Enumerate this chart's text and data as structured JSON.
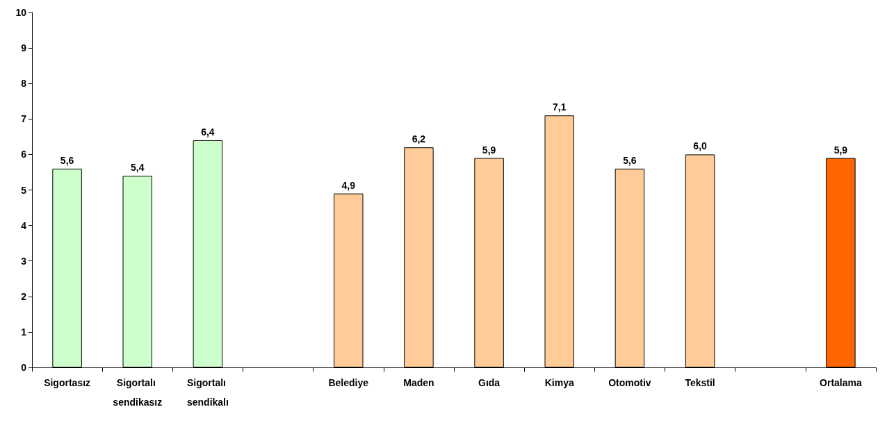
{
  "chart_data": {
    "type": "bar",
    "categories": [
      "Sigortasız",
      "Sigortalı sendikasız",
      "Sigortalı sendikalı",
      null,
      "Belediye",
      "Maden",
      "Gıda",
      "Kimya",
      "Otomotiv",
      "Tekstil",
      null,
      "Ortalama"
    ],
    "values": [
      5.6,
      5.4,
      6.4,
      null,
      4.9,
      6.2,
      5.9,
      7.1,
      5.6,
      6.0,
      null,
      5.9
    ],
    "colors": [
      "#ccffcc",
      "#ccffcc",
      "#ccffcc",
      null,
      "#ffcc99",
      "#ffcc99",
      "#ffcc99",
      "#ffcc99",
      "#ffcc99",
      "#ffcc99",
      null,
      "#ff6600"
    ],
    "value_labels": [
      "5,6",
      "5,4",
      "6,4",
      null,
      "4,9",
      "6,2",
      "5,9",
      "7,1",
      "5,6",
      "6,0",
      null,
      "5,9"
    ],
    "ylim": [
      0,
      10
    ],
    "yticks": [
      0,
      1,
      2,
      3,
      4,
      5,
      6,
      7,
      8,
      9,
      10
    ],
    "grid": false
  }
}
